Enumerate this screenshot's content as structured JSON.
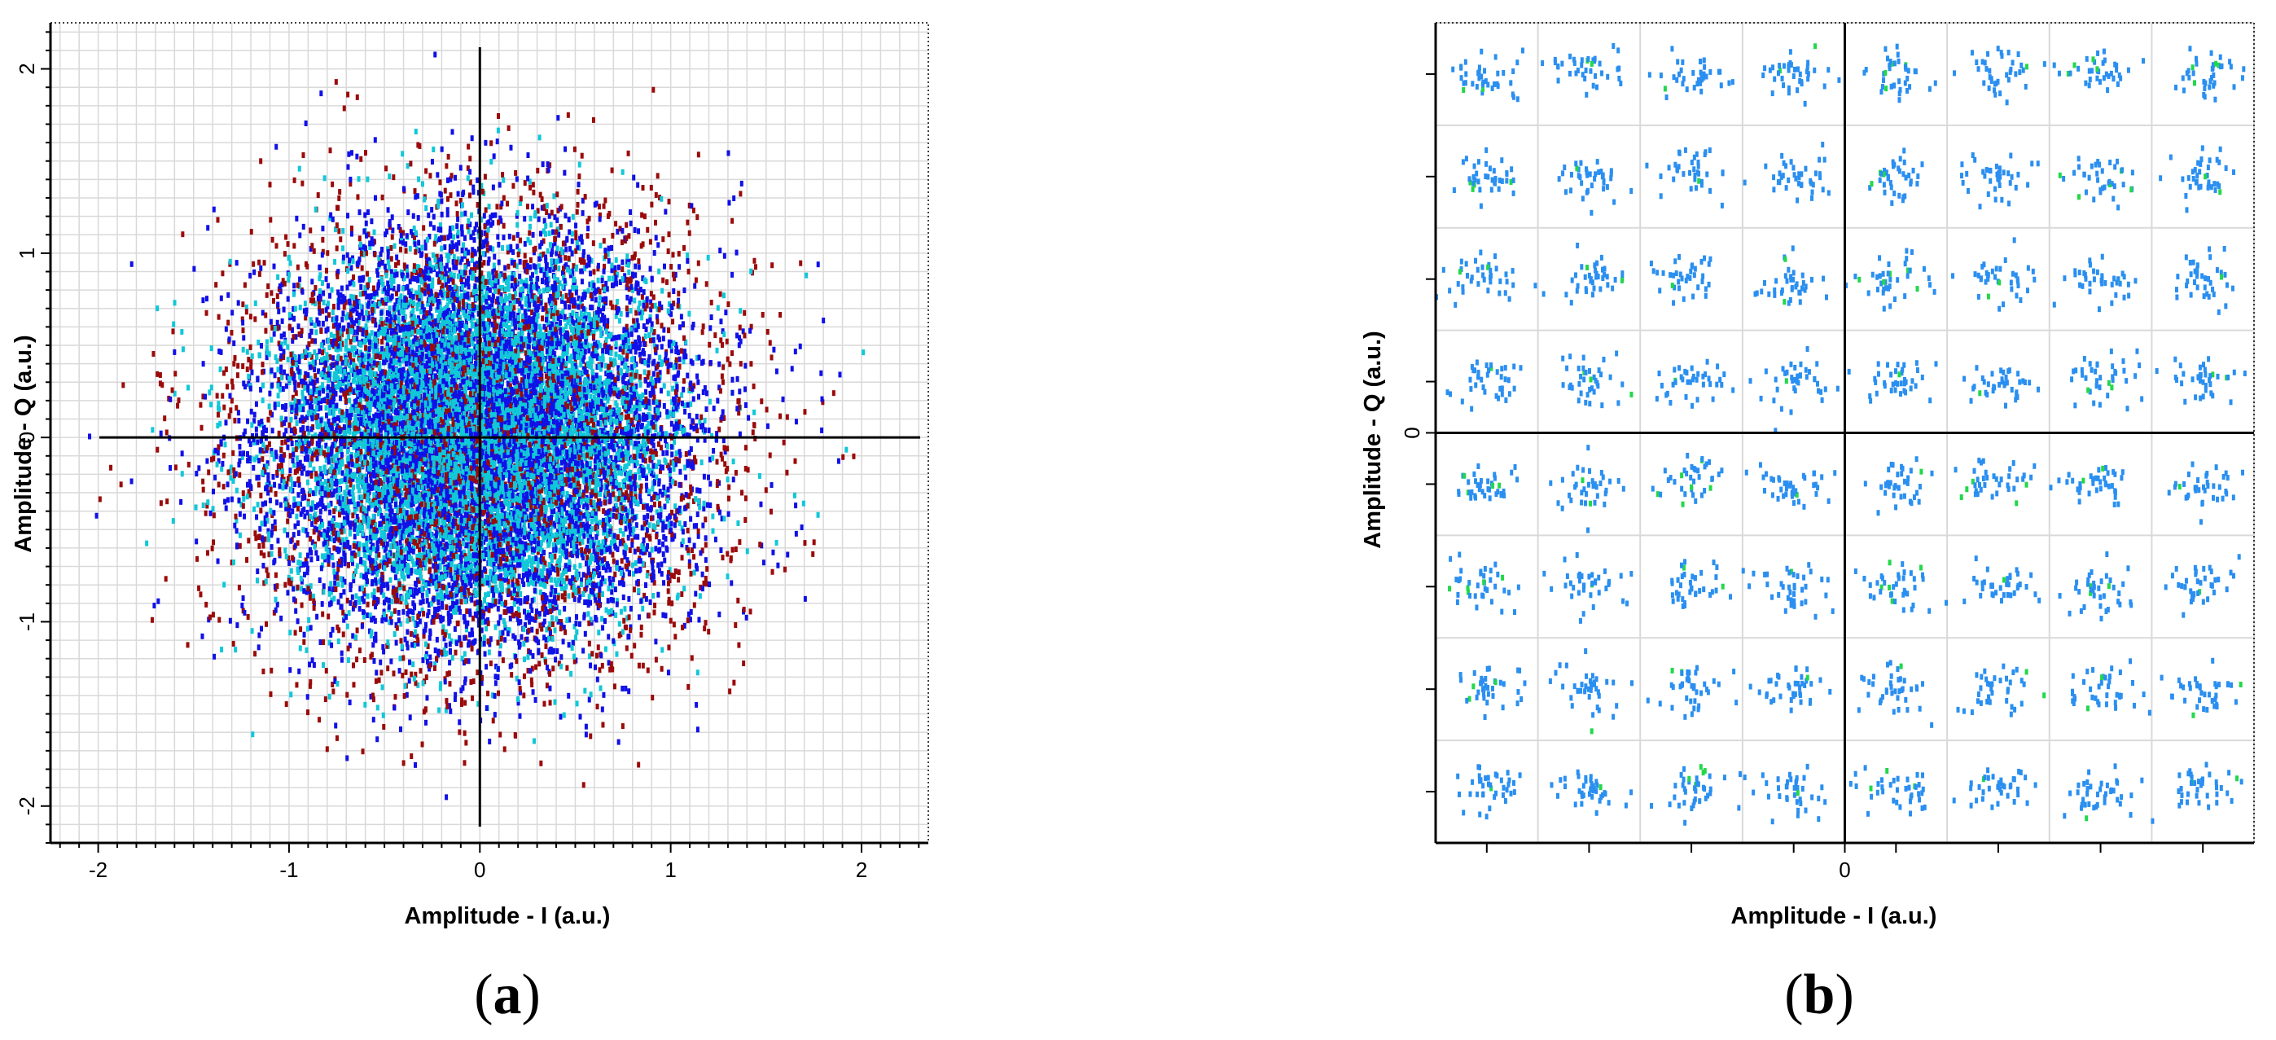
{
  "colors": {
    "background": "#ffffff",
    "grid": "#d9d9d9",
    "axis": "#000000",
    "series_blue": "#1010e8",
    "series_darkred": "#9b0a0a",
    "series_cyan": "#10c8d8",
    "series_lightblue": "#2a8ff0",
    "series_green": "#22d84a"
  },
  "chart_data": [
    {
      "type": "scatter",
      "panel_label": {
        "open": "(",
        "letter": "a",
        "close": ")"
      },
      "title": "",
      "xlabel": "Amplitude - I (a.u.)",
      "ylabel": "Amplitude - Q (a.u.)",
      "xlim": [
        -2.25,
        2.35
      ],
      "ylim": [
        -2.2,
        2.25
      ],
      "xticks": [
        -2,
        -1,
        0,
        1,
        2
      ],
      "yticks": [
        -2,
        -1,
        0,
        1,
        2
      ],
      "xtick_labels": [
        "-2",
        "-1",
        "0",
        "1",
        "2"
      ],
      "ytick_labels": [
        "-2",
        "-1",
        "0",
        "1",
        "2"
      ],
      "grid": true,
      "grid_step": 0.1,
      "cloud": {
        "shape": "gaussian",
        "center": [
          0,
          0
        ],
        "sigma": 0.55,
        "max_radius": 2.1
      },
      "series": [
        {
          "color_key": "series_darkred",
          "weight": 0.2
        },
        {
          "color_key": "series_blue",
          "weight": 0.55
        },
        {
          "color_key": "series_cyan",
          "weight": 0.25
        }
      ]
    },
    {
      "type": "scatter",
      "panel_label": {
        "open": "(",
        "letter": "b",
        "close": ")"
      },
      "title": "",
      "xlabel": "Amplitude - I (a.u.)",
      "ylabel": "Amplitude - Q (a.u.)",
      "xlim": [
        -8,
        8
      ],
      "ylim": [
        -8,
        8
      ],
      "xticks": [
        -7,
        -5,
        -3,
        -1,
        1,
        3,
        5,
        7
      ],
      "yticks": [
        -7,
        -5,
        -3,
        -1,
        1,
        3,
        5,
        7
      ],
      "xtick_labels": [
        "0"
      ],
      "ytick_labels": [
        "0"
      ],
      "zero_label_value": 0,
      "grid": true,
      "constellation": {
        "modulation_levels": [
          -7,
          -5,
          -3,
          -1,
          1,
          3,
          5,
          7
        ],
        "cluster_spread": 0.3,
        "points_per_symbol": 38
      },
      "series": [
        {
          "color_key": "series_lightblue",
          "weight": 0.95
        },
        {
          "color_key": "series_green",
          "weight": 0.05
        }
      ]
    }
  ]
}
